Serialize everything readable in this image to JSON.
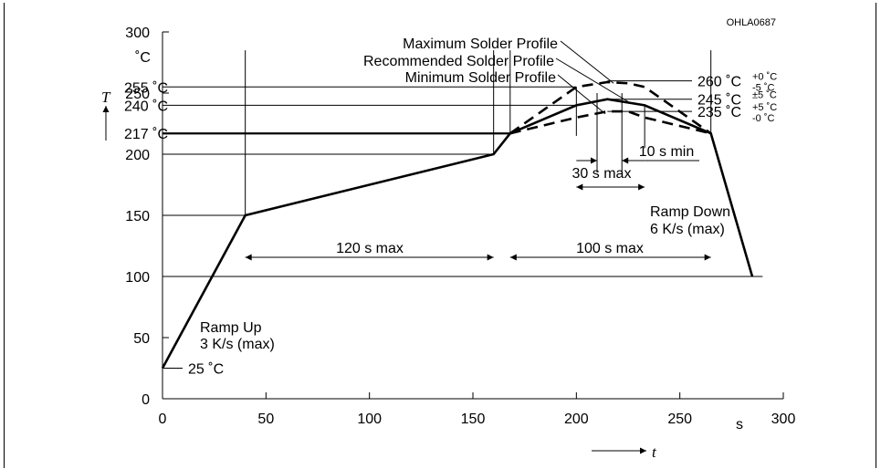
{
  "chart_data": {
    "type": "line",
    "code": "OHLA0687",
    "xlabel": "t",
    "ylabel": "T",
    "x_unit": "s",
    "y_unit": "˚C",
    "xlim": [
      0,
      300
    ],
    "ylim": [
      0,
      300
    ],
    "x_ticks": [
      "0",
      "50",
      "100",
      "150",
      "200",
      "250",
      "300"
    ],
    "y_ticks": [
      "0",
      "50",
      "100",
      "150",
      "200",
      "250",
      "300"
    ],
    "series": [
      {
        "name": "Maximum Solder Profile",
        "style": "dashed",
        "x": [
          168,
          200,
          215,
          225,
          233,
          265
        ],
        "y": [
          217,
          255,
          259,
          258,
          255,
          217
        ]
      },
      {
        "name": "Recommended Solder Profile",
        "style": "solid",
        "x": [
          0,
          40,
          160,
          168,
          200,
          215,
          233,
          265,
          285
        ],
        "y": [
          25,
          150,
          200,
          217,
          240,
          245,
          240,
          217,
          100
        ]
      },
      {
        "name": "Minimum Solder Profile",
        "style": "dashed",
        "x": [
          168,
          200,
          215,
          225,
          233,
          265
        ],
        "y": [
          217,
          230,
          235,
          235,
          230,
          217
        ]
      }
    ],
    "left_labels": [
      {
        "text": "255 ˚C",
        "value": 255
      },
      {
        "text": "240 ˚C",
        "value": 240
      },
      {
        "text": "217 ˚C",
        "value": 217
      },
      {
        "text": "25 ˚C",
        "value": 25
      }
    ],
    "right_labels": [
      {
        "main": "260 ˚C",
        "sup": "+0 ˚C",
        "sub": "-5 ˚C",
        "value": 260
      },
      {
        "main": "245 ˚C",
        "sup": "±5 ˚C",
        "sub": "",
        "value": 245
      },
      {
        "main": "235 ˚C",
        "sup": "+5 ˚C",
        "sub": "-0 ˚C",
        "value": 235
      }
    ],
    "annotations": {
      "ramp_up": [
        "Ramp Up",
        "3 K/s (max)"
      ],
      "ramp_down": [
        "Ramp Down",
        "6 K/s (max)"
      ],
      "preheat_time": "120 s max",
      "above_liquidus_time": "100 s max",
      "peak_window": "30 s max",
      "min_peak_time": "10 s min"
    },
    "grid": false,
    "legend": "callouts"
  }
}
